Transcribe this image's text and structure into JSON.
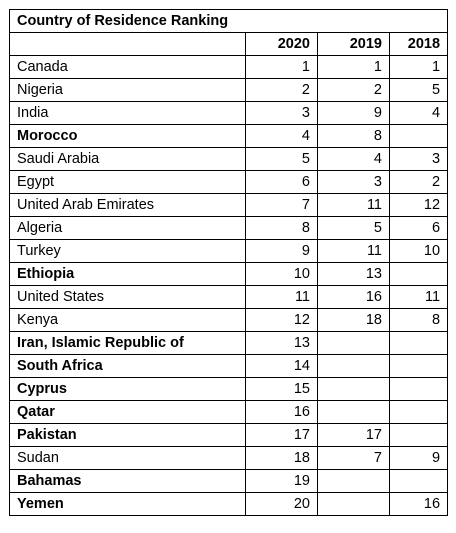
{
  "title": "Country of Residence Ranking",
  "columns": [
    "",
    "2020",
    "2019",
    "2018"
  ],
  "rows": [
    {
      "country": "Canada",
      "y2020": "1",
      "y2019": "1",
      "y2018": "1",
      "bold": false
    },
    {
      "country": "Nigeria",
      "y2020": "2",
      "y2019": "2",
      "y2018": "5",
      "bold": false
    },
    {
      "country": "India",
      "y2020": "3",
      "y2019": "9",
      "y2018": "4",
      "bold": false
    },
    {
      "country": "Morocco",
      "y2020": "4",
      "y2019": "8",
      "y2018": "",
      "bold": true
    },
    {
      "country": "Saudi Arabia",
      "y2020": "5",
      "y2019": "4",
      "y2018": "3",
      "bold": false
    },
    {
      "country": "Egypt",
      "y2020": "6",
      "y2019": "3",
      "y2018": "2",
      "bold": false
    },
    {
      "country": "United Arab Emirates",
      "y2020": "7",
      "y2019": "11",
      "y2018": "12",
      "bold": false
    },
    {
      "country": "Algeria",
      "y2020": "8",
      "y2019": "5",
      "y2018": "6",
      "bold": false
    },
    {
      "country": "Turkey",
      "y2020": "9",
      "y2019": "11",
      "y2018": "10",
      "bold": false
    },
    {
      "country": "Ethiopia",
      "y2020": "10",
      "y2019": "13",
      "y2018": "",
      "bold": true
    },
    {
      "country": "United States",
      "y2020": "11",
      "y2019": "16",
      "y2018": "11",
      "bold": false
    },
    {
      "country": "Kenya",
      "y2020": "12",
      "y2019": "18",
      "y2018": "8",
      "bold": false
    },
    {
      "country": "Iran, Islamic Republic of",
      "y2020": "13",
      "y2019": "",
      "y2018": "",
      "bold": true
    },
    {
      "country": "South Africa",
      "y2020": "14",
      "y2019": "",
      "y2018": "",
      "bold": true
    },
    {
      "country": "Cyprus",
      "y2020": "15",
      "y2019": "",
      "y2018": "",
      "bold": true
    },
    {
      "country": "Qatar",
      "y2020": "16",
      "y2019": "",
      "y2018": "",
      "bold": true
    },
    {
      "country": "Pakistan",
      "y2020": "17",
      "y2019": "17",
      "y2018": "",
      "bold": true
    },
    {
      "country": "Sudan",
      "y2020": "18",
      "y2019": "7",
      "y2018": "9",
      "bold": false
    },
    {
      "country": "Bahamas",
      "y2020": "19",
      "y2019": "",
      "y2018": "",
      "bold": true
    },
    {
      "country": "Yemen",
      "y2020": "20",
      "y2019": "",
      "y2018": "16",
      "bold": true
    }
  ]
}
